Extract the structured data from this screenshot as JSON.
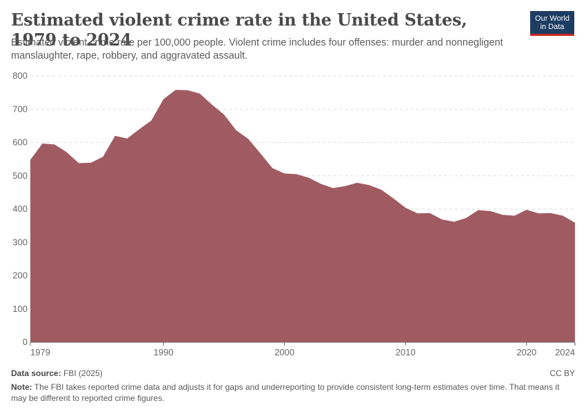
{
  "header": {
    "title": "Estimated violent crime rate in the United States, 1979 to 2024",
    "subtitle": "Estimated violent crime rate per 100,000 people. Violent crime includes four offenses: murder and nonnegligent manslaughter, rape, robbery, and aggravated assault.",
    "logo_line1": "Our World",
    "logo_line2": "in Data"
  },
  "footer": {
    "source_label": "Data source:",
    "source_value": "FBI (2025)",
    "license": "CC BY",
    "note_label": "Note:",
    "note_text": "The FBI takes reported crime data and adjusts it for gaps and underreporting to provide consistent long-term estimates over time. That means it may be different to reported crime figures."
  },
  "colors": {
    "area": "#a05b62",
    "grid": "#dddddd",
    "axis": "#666666"
  },
  "chart_data": {
    "type": "area",
    "title": "Estimated violent crime rate in the United States, 1979 to 2024",
    "xlabel": "",
    "ylabel": "",
    "xlim": [
      1979,
      2024
    ],
    "ylim": [
      0,
      800
    ],
    "x_ticks": [
      1979,
      1990,
      2000,
      2010,
      2020,
      2024
    ],
    "y_ticks": [
      0,
      100,
      200,
      300,
      400,
      500,
      600,
      700,
      800
    ],
    "grid": "horizontal dashed",
    "series": [
      {
        "name": "",
        "x": [
          1979,
          1980,
          1981,
          1982,
          1983,
          1984,
          1985,
          1986,
          1987,
          1988,
          1989,
          1990,
          1991,
          1992,
          1993,
          1994,
          1995,
          1996,
          1997,
          1998,
          1999,
          2000,
          2001,
          2002,
          2003,
          2004,
          2005,
          2006,
          2007,
          2008,
          2009,
          2010,
          2011,
          2012,
          2013,
          2014,
          2015,
          2016,
          2017,
          2018,
          2019,
          2020,
          2021,
          2022,
          2023,
          2024
        ],
        "values": [
          548,
          597,
          594,
          571,
          538,
          539,
          557,
          620,
          612,
          640,
          666,
          730,
          758,
          757,
          747,
          714,
          684,
          637,
          611,
          568,
          523,
          507,
          505,
          494,
          476,
          463,
          469,
          479,
          472,
          458,
          432,
          404,
          387,
          388,
          369,
          362,
          373,
          397,
          394,
          383,
          380,
          398,
          387,
          388,
          380,
          359
        ]
      }
    ]
  }
}
